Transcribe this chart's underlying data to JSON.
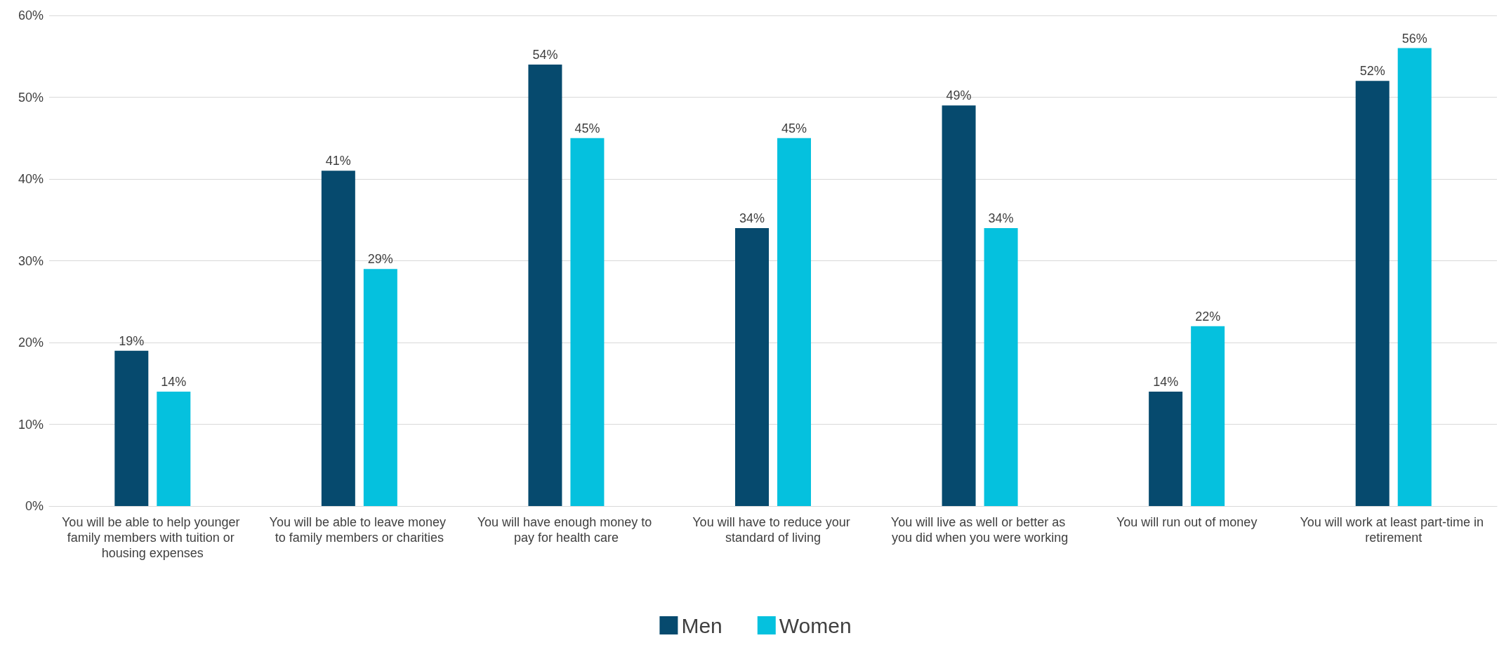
{
  "chart_data": {
    "type": "bar",
    "categories": [
      "You will be able to help younger family members with tuition or housing expenses",
      "You will be able to leave money to family members or charities",
      "You will have enough money to pay for health care",
      "You will have to reduce your standard of living",
      "You will live as well or better as you did when you were working",
      "You will run out of money",
      "You will work at least part-time in retirement"
    ],
    "series": [
      {
        "name": "Men",
        "color": "#064a6e",
        "values": [
          19,
          41,
          54,
          34,
          49,
          14,
          52
        ],
        "value_labels": [
          "19%",
          "41%",
          "54%",
          "34%",
          "49%",
          "14%",
          "52%"
        ]
      },
      {
        "name": "Women",
        "color": "#05c1de",
        "values": [
          14,
          29,
          45,
          45,
          34,
          22,
          56
        ],
        "value_labels": [
          "14%",
          "29%",
          "45%",
          "45%",
          "34%",
          "22%",
          "56%"
        ]
      }
    ],
    "ylim": [
      0,
      60
    ],
    "yticks": [
      {
        "value": 0,
        "label": "0%"
      },
      {
        "value": 10,
        "label": "10%"
      },
      {
        "value": 20,
        "label": "20%"
      },
      {
        "value": 30,
        "label": "30%"
      },
      {
        "value": 40,
        "label": "40%"
      },
      {
        "value": 50,
        "label": "50%"
      },
      {
        "value": 60,
        "label": "60%"
      }
    ],
    "grid": "y",
    "legend": "bottom"
  }
}
